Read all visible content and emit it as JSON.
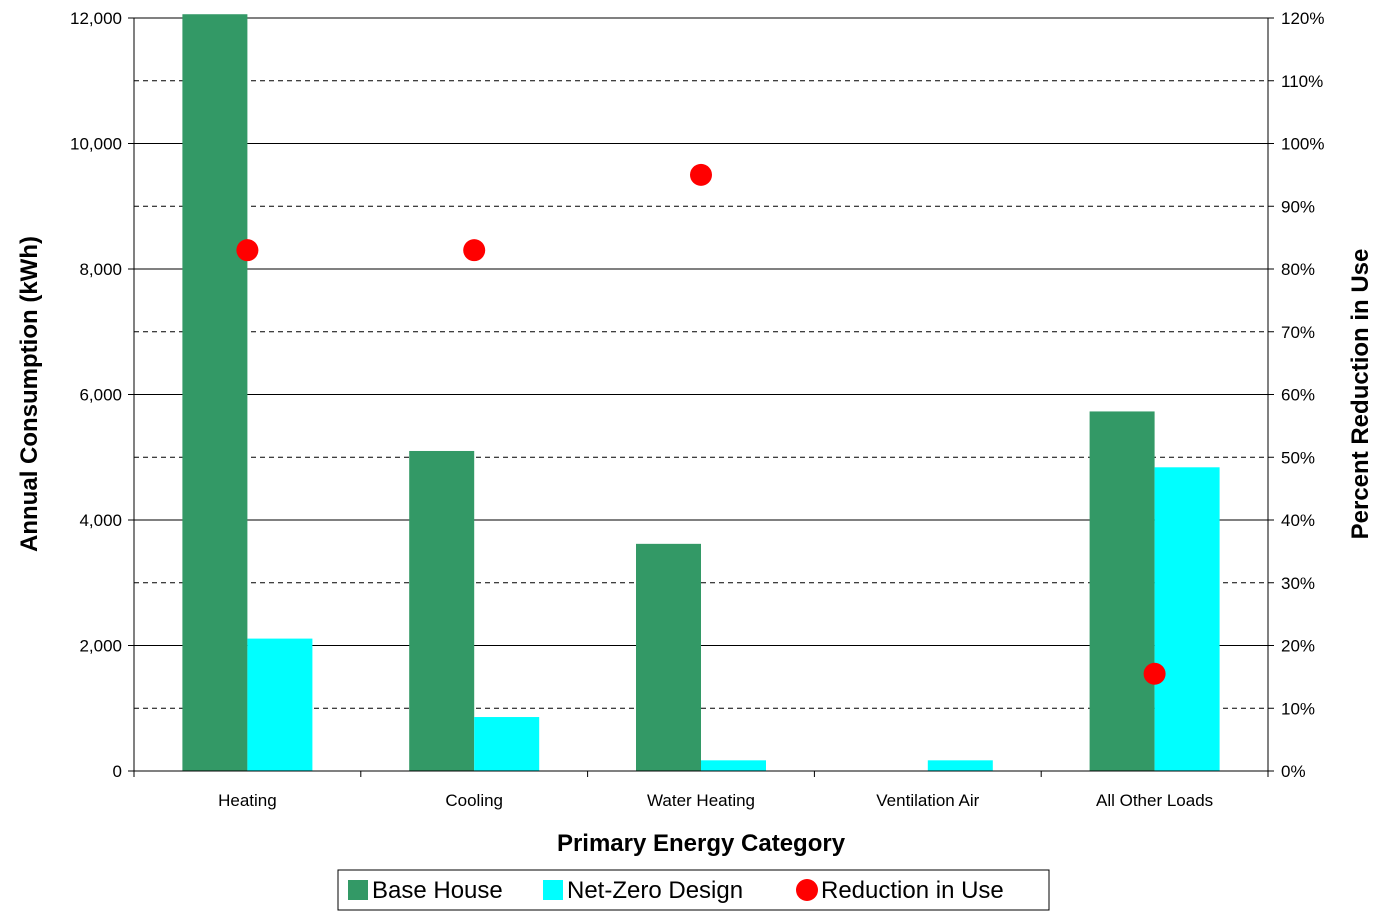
{
  "chart_data": {
    "type": "bar",
    "categories": [
      "Heating",
      "Cooling",
      "Water Heating",
      "Ventilation Air",
      "All Other Loads"
    ],
    "series": [
      {
        "name": "Base House",
        "kind": "bar",
        "axis": "left",
        "color": "#339966",
        "values": [
          12060,
          5100,
          3620,
          0,
          5730
        ]
      },
      {
        "name": "Net-Zero Design",
        "kind": "bar",
        "axis": "left",
        "color": "#00FFFF",
        "values": [
          2110,
          860,
          170,
          170,
          4840
        ]
      },
      {
        "name": "Reduction in Use",
        "kind": "scatter",
        "axis": "right",
        "color": "#FF0000",
        "values": [
          0.83,
          0.83,
          0.95,
          null,
          0.155
        ]
      }
    ],
    "xlabel": "Primary Energy Category",
    "ylabel": "Annual Consumption (kWh)",
    "y2label": "Percent Reduction in Use",
    "ylim": [
      0,
      12000
    ],
    "y2lim": [
      0,
      1.2
    ],
    "yticks": [
      "0",
      "2,000",
      "4,000",
      "6,000",
      "8,000",
      "10,000",
      "12,000"
    ],
    "y2ticks": [
      "0%",
      "10%",
      "20%",
      "30%",
      "40%",
      "50%",
      "60%",
      "70%",
      "80%",
      "90%",
      "100%",
      "110%",
      "120%"
    ],
    "grid": "horizontal (solid at major ticks, dashed between)",
    "legend": "bottom"
  }
}
